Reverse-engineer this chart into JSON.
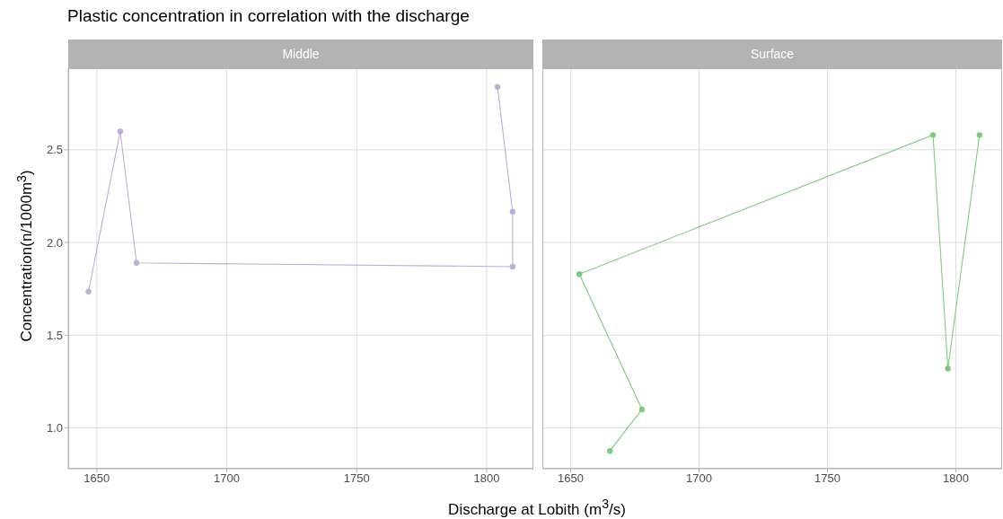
{
  "chart_data": [
    {
      "type": "line",
      "title": "Plastic concentration in correlation with the discharge",
      "subtitle": "Middle",
      "ylabel": "Concentration(n/1000m$^{3}$)",
      "xlim": [
        1639,
        1818
      ],
      "xticks": [
        1650,
        1700,
        1750,
        1800
      ],
      "ylim": [
        0.78,
        2.94
      ],
      "yticks": [
        {
          "value": 1.0,
          "label": "1.0"
        },
        1.5,
        {
          "value": 2.0,
          "label": "2.0"
        },
        2.5
      ],
      "grid": true,
      "marker": "circle",
      "series": [
        {
          "color": "#beaed4",
          "x": [
            1646.8,
            1659,
            1665.3,
            1810,
            1810,
            1804.2
          ],
          "values": [
            1.735,
            2.6,
            1.89,
            1.87,
            2.166,
            2.84
          ]
        }
      ]
    },
    {
      "type": "line",
      "subtitle": "Surface",
      "xlabel": "Discharge at Lobith (m$^{3}$/s)",
      "xlim": [
        1639,
        1818
      ],
      "xticks": [
        1650,
        1700,
        1750,
        1800
      ],
      "ylim": [
        0.78,
        2.94
      ],
      "yticks": [
        1,
        1.5,
        2,
        2.5
      ],
      "grid": true,
      "marker": "circle",
      "tick_labels": "x",
      "series": [
        {
          "color": "#7fc97f",
          "x": [
            1665.3,
            1677.8,
            1653.4,
            1791.1,
            1796.9,
            1809.2
          ],
          "values": [
            0.876,
            1.1,
            1.83,
            2.58,
            1.32,
            2.58
          ]
        }
      ]
    }
  ]
}
